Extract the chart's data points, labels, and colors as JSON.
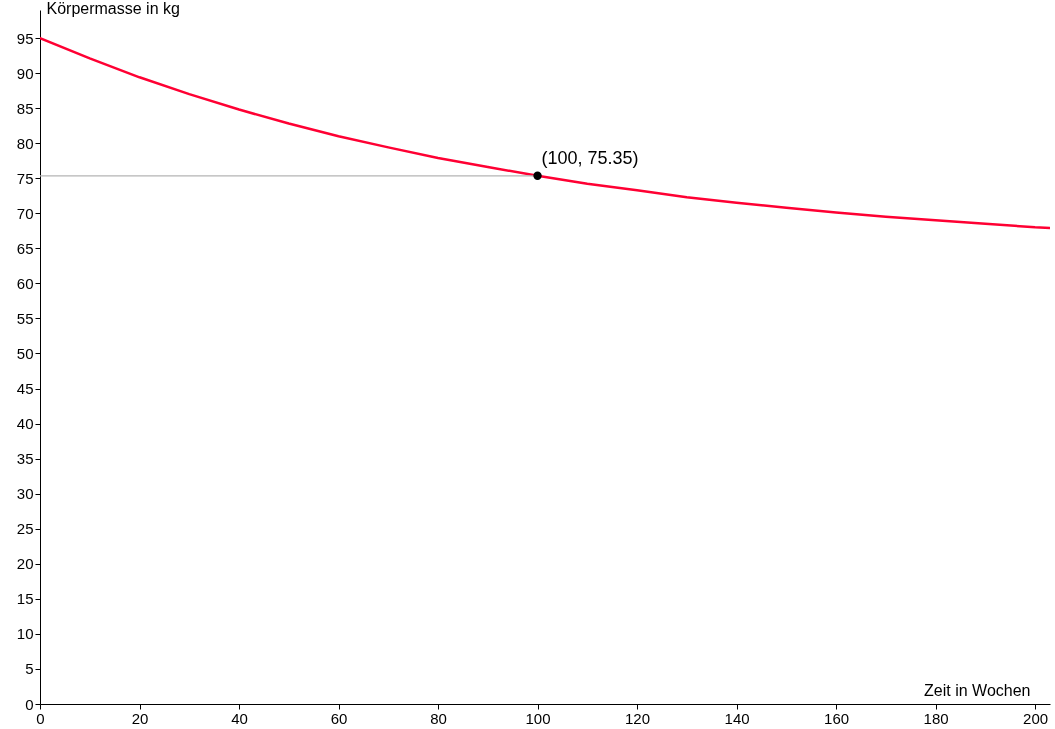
{
  "chart_data": {
    "type": "line",
    "xlabel": "Zeit in Wochen",
    "ylabel": "Körpermasse in kg",
    "xlim": [
      0,
      203
    ],
    "ylim": [
      0,
      99
    ],
    "xticks": [
      0,
      20,
      40,
      60,
      80,
      100,
      120,
      140,
      160,
      180,
      200
    ],
    "yticks": [
      0,
      5,
      10,
      15,
      20,
      25,
      30,
      35,
      40,
      45,
      50,
      55,
      60,
      65,
      70,
      75,
      80,
      85,
      90,
      95
    ],
    "series": [
      {
        "type": "line",
        "color": "#ff0033",
        "x": [
          0,
          10,
          20,
          30,
          40,
          50,
          60,
          70,
          80,
          90,
          100,
          110,
          120,
          130,
          140,
          150,
          160,
          170,
          180,
          190,
          200,
          203
        ],
        "values": [
          95,
          92.1,
          89.4,
          87,
          84.8,
          82.8,
          81,
          79.4,
          77.9,
          76.6,
          75.35,
          74.2,
          73.3,
          72.3,
          71.5,
          70.8,
          70.1,
          69.5,
          69,
          68.5,
          68,
          67.9
        ]
      },
      {
        "type": "line",
        "color": "#b4b4b4",
        "x": [
          0,
          100
        ],
        "values": [
          75.35,
          75.35
        ]
      },
      {
        "type": "scatter",
        "color": "#000000",
        "marker": "circle",
        "x": [
          100
        ],
        "values": [
          75.35
        ]
      }
    ],
    "annotations": [
      {
        "text": "(100, 75.35)",
        "x": 100,
        "y": 75.35
      }
    ]
  }
}
